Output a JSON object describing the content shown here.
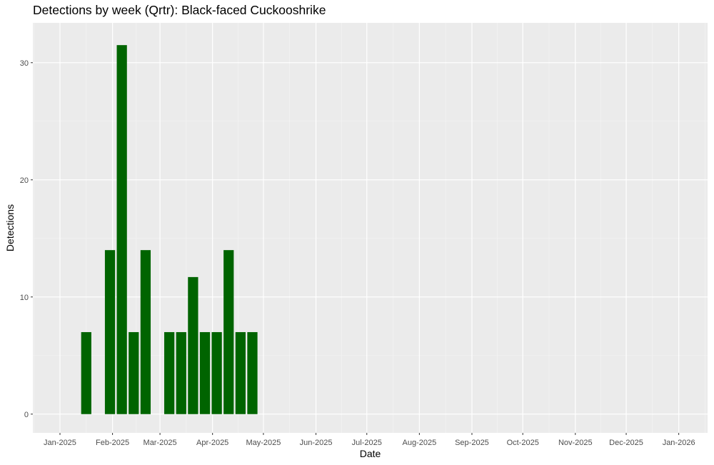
{
  "chart_data": {
    "type": "bar",
    "title": "Detections by week (Qrtr): Black-faced Cuckooshrike",
    "xlabel": "Date",
    "ylabel": "Detections",
    "x_ticks": [
      "Jan-2025",
      "Feb-2025",
      "Mar-2025",
      "Apr-2025",
      "May-2025",
      "Jun-2025",
      "Jul-2025",
      "Aug-2025",
      "Sep-2025",
      "Oct-2025",
      "Nov-2025",
      "Dec-2025",
      "Jan-2026"
    ],
    "y_ticks": [
      0,
      10,
      20,
      30
    ],
    "ylim": [
      -1.6,
      33.4
    ],
    "xlim": [
      "2024-12-16",
      "2026-01-18"
    ],
    "grid": true,
    "bar_color": "#006400",
    "panel_background": "#ebebeb",
    "bars": [
      {
        "week_start": "2025-01-13",
        "value": 7
      },
      {
        "week_start": "2025-01-27",
        "value": 14
      },
      {
        "week_start": "2025-02-03",
        "value": 31.5
      },
      {
        "week_start": "2025-02-10",
        "value": 7
      },
      {
        "week_start": "2025-02-17",
        "value": 14
      },
      {
        "week_start": "2025-03-03",
        "value": 7
      },
      {
        "week_start": "2025-03-10",
        "value": 7
      },
      {
        "week_start": "2025-03-17",
        "value": 11.7
      },
      {
        "week_start": "2025-03-24",
        "value": 7
      },
      {
        "week_start": "2025-03-31",
        "value": 7
      },
      {
        "week_start": "2025-04-07",
        "value": 14
      },
      {
        "week_start": "2025-04-14",
        "value": 7
      },
      {
        "week_start": "2025-04-21",
        "value": 7
      }
    ]
  }
}
